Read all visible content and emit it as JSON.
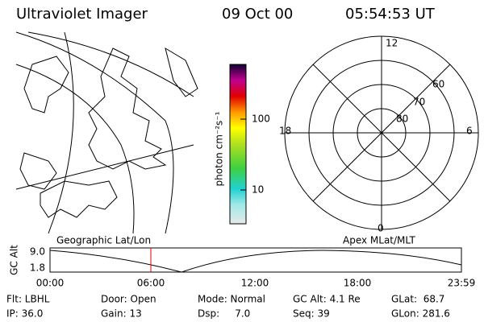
{
  "header": {
    "instrument": "Ultraviolet Imager",
    "date": "09 Oct 00",
    "time": "05:54:53 UT"
  },
  "colorbar": {
    "label": "photon cm⁻²s⁻¹",
    "ticks": [
      "100",
      "10"
    ]
  },
  "polar": {
    "mlt_labels": [
      "12",
      "18",
      "6",
      "0"
    ],
    "mlat_labels": [
      "60",
      "70",
      "80"
    ]
  },
  "orbit": {
    "left_label": "Geographic Lat/Lon",
    "right_label": "Apex MLat/MLT",
    "y_label": "GC Alt",
    "y_ticks": [
      "9.0",
      "1.8"
    ],
    "x_ticks": [
      "00:00",
      "06:00",
      "12:00",
      "18:00",
      "23:59"
    ]
  },
  "status": [
    [
      "Flt: LBHL",
      "IP: 36.0"
    ],
    [
      "Door: Open",
      "Gain: 13"
    ],
    [
      "Mode: Normal",
      "Dsp:     7.0"
    ],
    [
      "GC Alt: 4.1 Re",
      "Seq: 39"
    ],
    [
      "GLat:  68.7",
      "GLon: 281.6"
    ]
  ]
}
